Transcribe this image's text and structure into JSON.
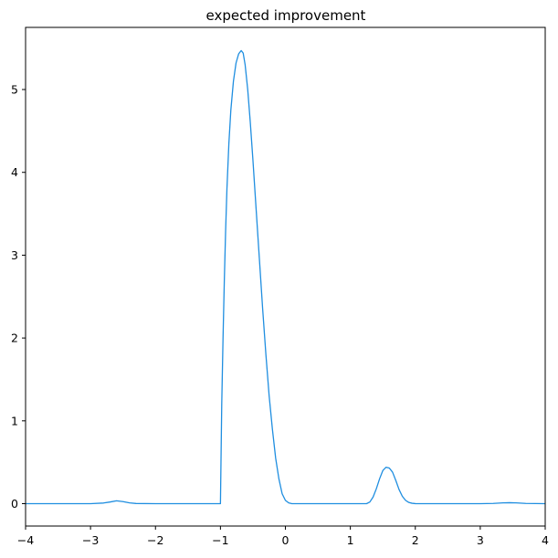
{
  "chart_data": {
    "type": "line",
    "title": "expected improvement",
    "xlabel": "",
    "ylabel": "",
    "xlim": [
      -4,
      4
    ],
    "ylim": [
      -0.27,
      5.75
    ],
    "xticks": [
      -4,
      -3,
      -2,
      -1,
      0,
      1,
      2,
      3,
      4
    ],
    "xtick_labels": [
      "−4",
      "−3",
      "−2",
      "−1",
      "0",
      "1",
      "2",
      "3",
      "4"
    ],
    "yticks": [
      0,
      1,
      2,
      3,
      4,
      5
    ],
    "ytick_labels": [
      "0",
      "1",
      "2",
      "3",
      "4",
      "5"
    ],
    "grid": false,
    "series": [
      {
        "color": "#1f8ee0",
        "x": [
          -4.0,
          -3.0,
          -2.8,
          -2.7,
          -2.6,
          -2.5,
          -2.4,
          -2.3,
          -2.0,
          -1.5,
          -1.0,
          -0.98,
          -0.96,
          -0.94,
          -0.92,
          -0.9,
          -0.87,
          -0.84,
          -0.8,
          -0.76,
          -0.72,
          -0.68,
          -0.65,
          -0.62,
          -0.58,
          -0.54,
          -0.5,
          -0.45,
          -0.4,
          -0.35,
          -0.3,
          -0.25,
          -0.2,
          -0.15,
          -0.1,
          -0.05,
          0.0,
          0.05,
          0.1,
          0.2,
          0.5,
          1.0,
          1.25,
          1.3,
          1.35,
          1.4,
          1.45,
          1.5,
          1.55,
          1.6,
          1.65,
          1.7,
          1.75,
          1.8,
          1.85,
          1.9,
          1.95,
          2.0,
          2.1,
          2.5,
          3.0,
          3.2,
          3.35,
          3.45,
          3.55,
          3.7,
          4.0
        ],
        "y": [
          0.0,
          0.0,
          0.008,
          0.02,
          0.035,
          0.025,
          0.01,
          0.002,
          0.0,
          0.0,
          0.0,
          1.2,
          2.0,
          2.7,
          3.3,
          3.8,
          4.35,
          4.75,
          5.1,
          5.32,
          5.43,
          5.47,
          5.44,
          5.3,
          5.0,
          4.6,
          4.15,
          3.55,
          2.95,
          2.35,
          1.8,
          1.3,
          0.9,
          0.55,
          0.3,
          0.12,
          0.04,
          0.01,
          0.0,
          0.0,
          0.0,
          0.0,
          0.0,
          0.02,
          0.08,
          0.18,
          0.3,
          0.4,
          0.44,
          0.43,
          0.38,
          0.28,
          0.17,
          0.09,
          0.04,
          0.015,
          0.005,
          0.001,
          0.0,
          0.0,
          0.0,
          0.003,
          0.01,
          0.012,
          0.01,
          0.003,
          0.0
        ]
      }
    ]
  }
}
